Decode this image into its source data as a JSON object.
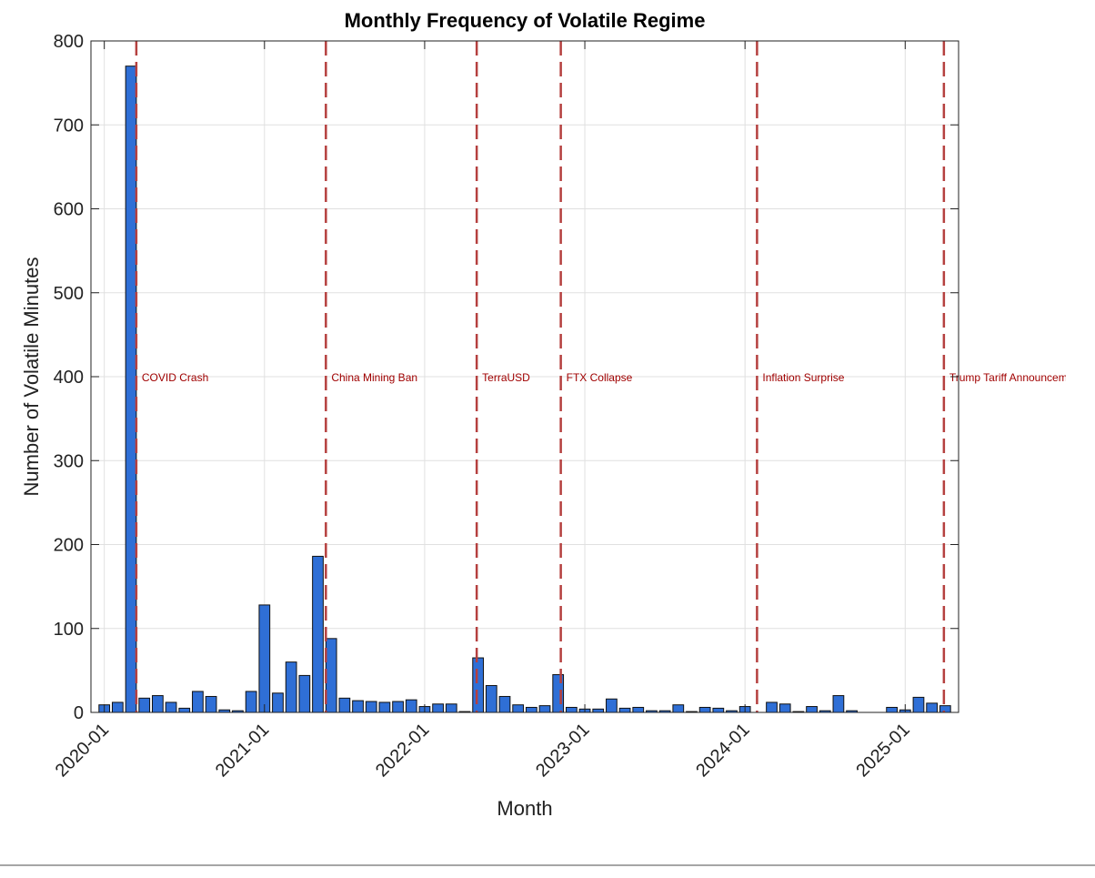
{
  "chart_data": {
    "type": "bar",
    "title": "Monthly Frequency of Volatile Regime",
    "xlabel": "Month",
    "ylabel": "Number of Volatile Minutes",
    "categories": [
      "2020-01",
      null,
      null,
      null,
      null,
      null,
      null,
      null,
      null,
      null,
      null,
      null,
      "2021-01",
      null,
      null,
      null,
      null,
      null,
      null,
      null,
      null,
      null,
      null,
      null,
      "2022-01",
      null,
      null,
      null,
      null,
      null,
      null,
      null,
      null,
      null,
      null,
      null,
      "2023-01",
      null,
      null,
      null,
      null,
      null,
      null,
      null,
      null,
      null,
      null,
      null,
      "2024-01",
      null,
      null,
      null,
      null,
      null,
      null,
      null,
      null,
      null,
      null,
      null,
      "2025-01",
      null,
      null,
      null
    ],
    "values": [
      9,
      12,
      770,
      17,
      20,
      12,
      5,
      25,
      19,
      3,
      2,
      25,
      128,
      23,
      60,
      44,
      186,
      88,
      17,
      14,
      13,
      12,
      13,
      15,
      7,
      10,
      10,
      1,
      65,
      32,
      19,
      9,
      6,
      8,
      45,
      6,
      4,
      4,
      16,
      5,
      6,
      2,
      2,
      9,
      1,
      6,
      5,
      2,
      7,
      0,
      12,
      10,
      1,
      7,
      2,
      20,
      2,
      0,
      0,
      6,
      3,
      18,
      11,
      8
    ],
    "color": "#2f6fd6",
    "xlim": [
      -1,
      64
    ],
    "ylim": [
      0,
      800
    ],
    "yticks": [
      0,
      100,
      200,
      300,
      400,
      500,
      600,
      700,
      800
    ],
    "grid": true,
    "events": [
      {
        "label": "COVID Crash",
        "position": 2.4
      },
      {
        "label": "China Mining Ban",
        "position": 16.6
      },
      {
        "label": "TerraUSD",
        "position": 27.9
      },
      {
        "label": "FTX Collapse",
        "position": 34.2
      },
      {
        "label": "Inflation Surprise",
        "position": 48.9
      },
      {
        "label": "Trump Tariff Announcement",
        "position": 62.9
      }
    ],
    "event_label_y": 400,
    "event_color": "#b5403f"
  }
}
